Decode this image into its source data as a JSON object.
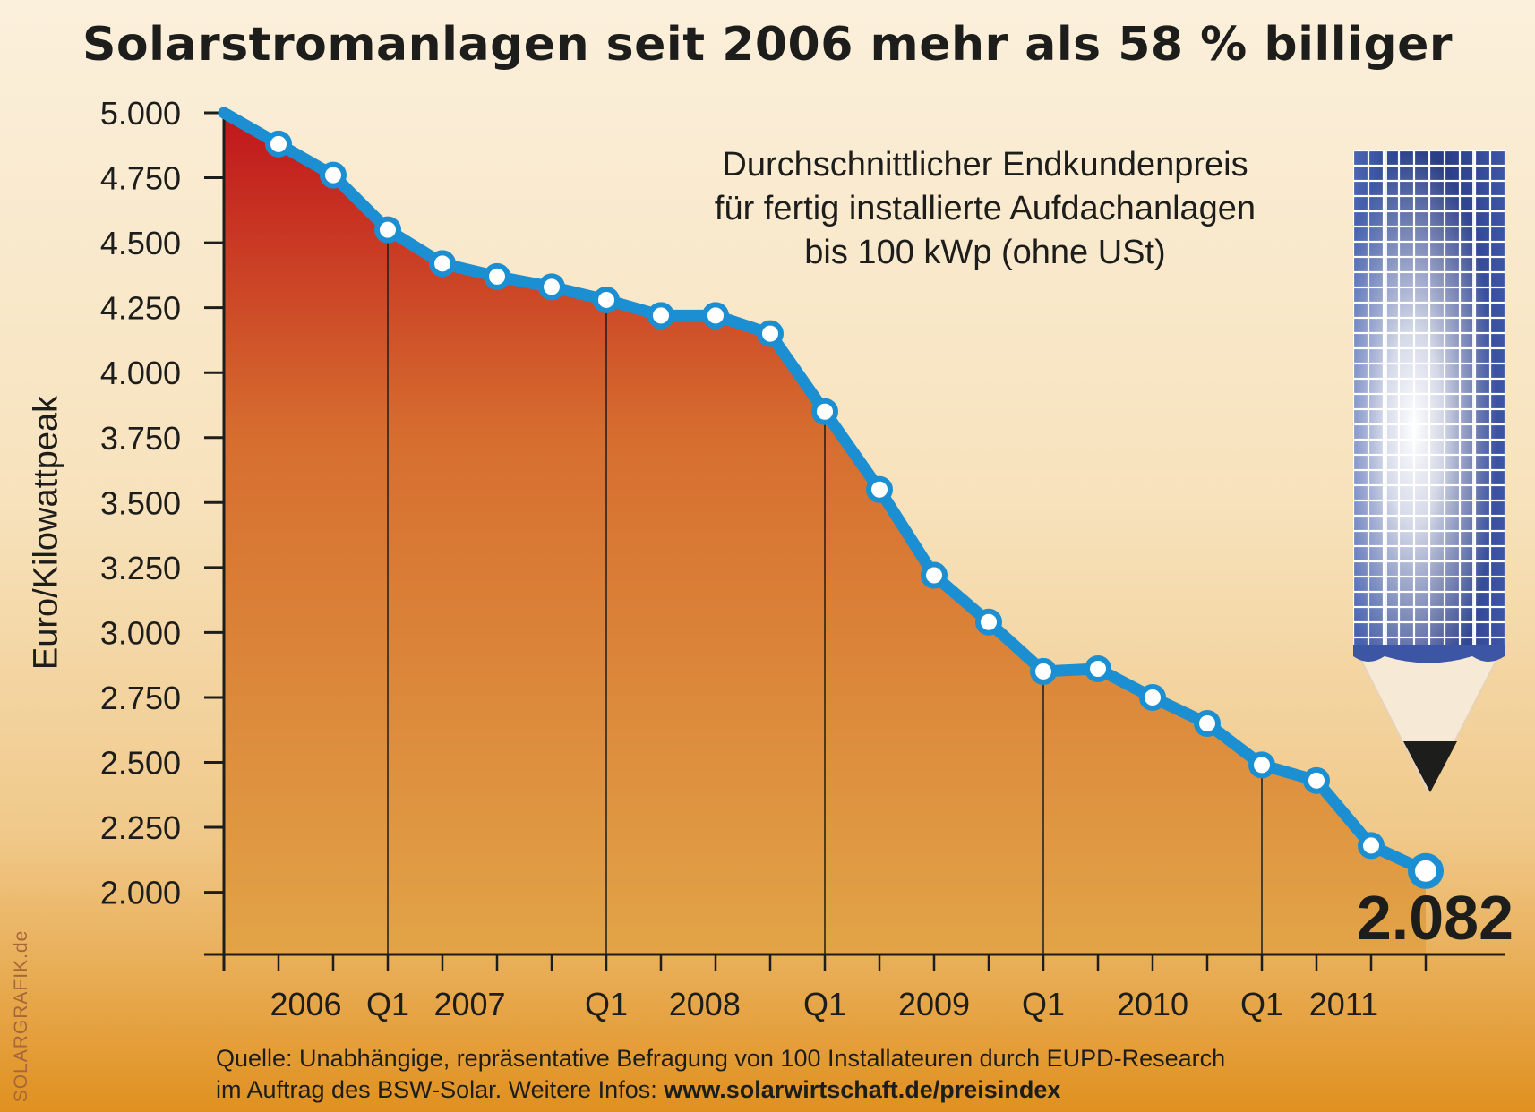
{
  "title": "Solarstromanlagen seit 2006 mehr als 58 % billiger",
  "subtitle_lines": [
    "Durchschnittlicher Endkundenpreis",
    "für fertig installierte Aufdachanlagen",
    "bis 100 kWp (ohne USt)"
  ],
  "last_value_label": "2.082",
  "source": {
    "line1": "Quelle: Unabhängige, repräsentative Befragung von 100 Installateuren durch EUPD-Research",
    "line2_prefix": "im Auftrag des BSW-Solar. Weitere Infos: ",
    "line2_url": "www.solarwirtschaft.de/preisindex"
  },
  "credit": "SOLARGRAFIK.de",
  "chart_data": {
    "type": "line",
    "title": "Solarstromanlagen seit 2006 mehr als 58 % billiger",
    "xlabel": "",
    "ylabel": "Euro/Kilowattpeak",
    "ylim": [
      1750,
      5000
    ],
    "yticks": [
      5000,
      4750,
      4500,
      4250,
      4000,
      3750,
      3500,
      3250,
      3000,
      2750,
      2500,
      2250,
      2000
    ],
    "ytick_labels": [
      "5.000",
      "4.750",
      "4.500",
      "4.250",
      "4.000",
      "3.750",
      "3.500",
      "3.250",
      "3.000",
      "2.750",
      "2.500",
      "2.250",
      "2.000"
    ],
    "x_labels": [
      {
        "index": 1.5,
        "text": "2006"
      },
      {
        "index": 3,
        "text": "Q1"
      },
      {
        "index": 4.5,
        "text": "2007"
      },
      {
        "index": 7,
        "text": "Q1"
      },
      {
        "index": 8.8,
        "text": "2008"
      },
      {
        "index": 11,
        "text": "Q1"
      },
      {
        "index": 13,
        "text": "2009"
      },
      {
        "index": 15,
        "text": "Q1"
      },
      {
        "index": 17,
        "text": "2010"
      },
      {
        "index": 19,
        "text": "Q1"
      },
      {
        "index": 20.5,
        "text": "2011"
      }
    ],
    "q1_markers": [
      3,
      7,
      11,
      15,
      19
    ],
    "series": [
      {
        "values": [
          5000,
          4880,
          4760,
          4550,
          4420,
          4370,
          4330,
          4280,
          4220,
          4220,
          4150,
          3850,
          3550,
          3220,
          3040,
          2850,
          2860,
          2750,
          2650,
          2490,
          2430,
          2180,
          2082
        ]
      }
    ],
    "grid": false,
    "legend": "none",
    "colors": {
      "line": "#1b8fd1",
      "marker_fill": "#ffffff",
      "area_top": "#c0161c",
      "area_mid": "#d66d2f",
      "area_bottom": "#e2a447",
      "axis": "#1d1d1b"
    },
    "decoration": "solar-panel-pencil-icon"
  }
}
